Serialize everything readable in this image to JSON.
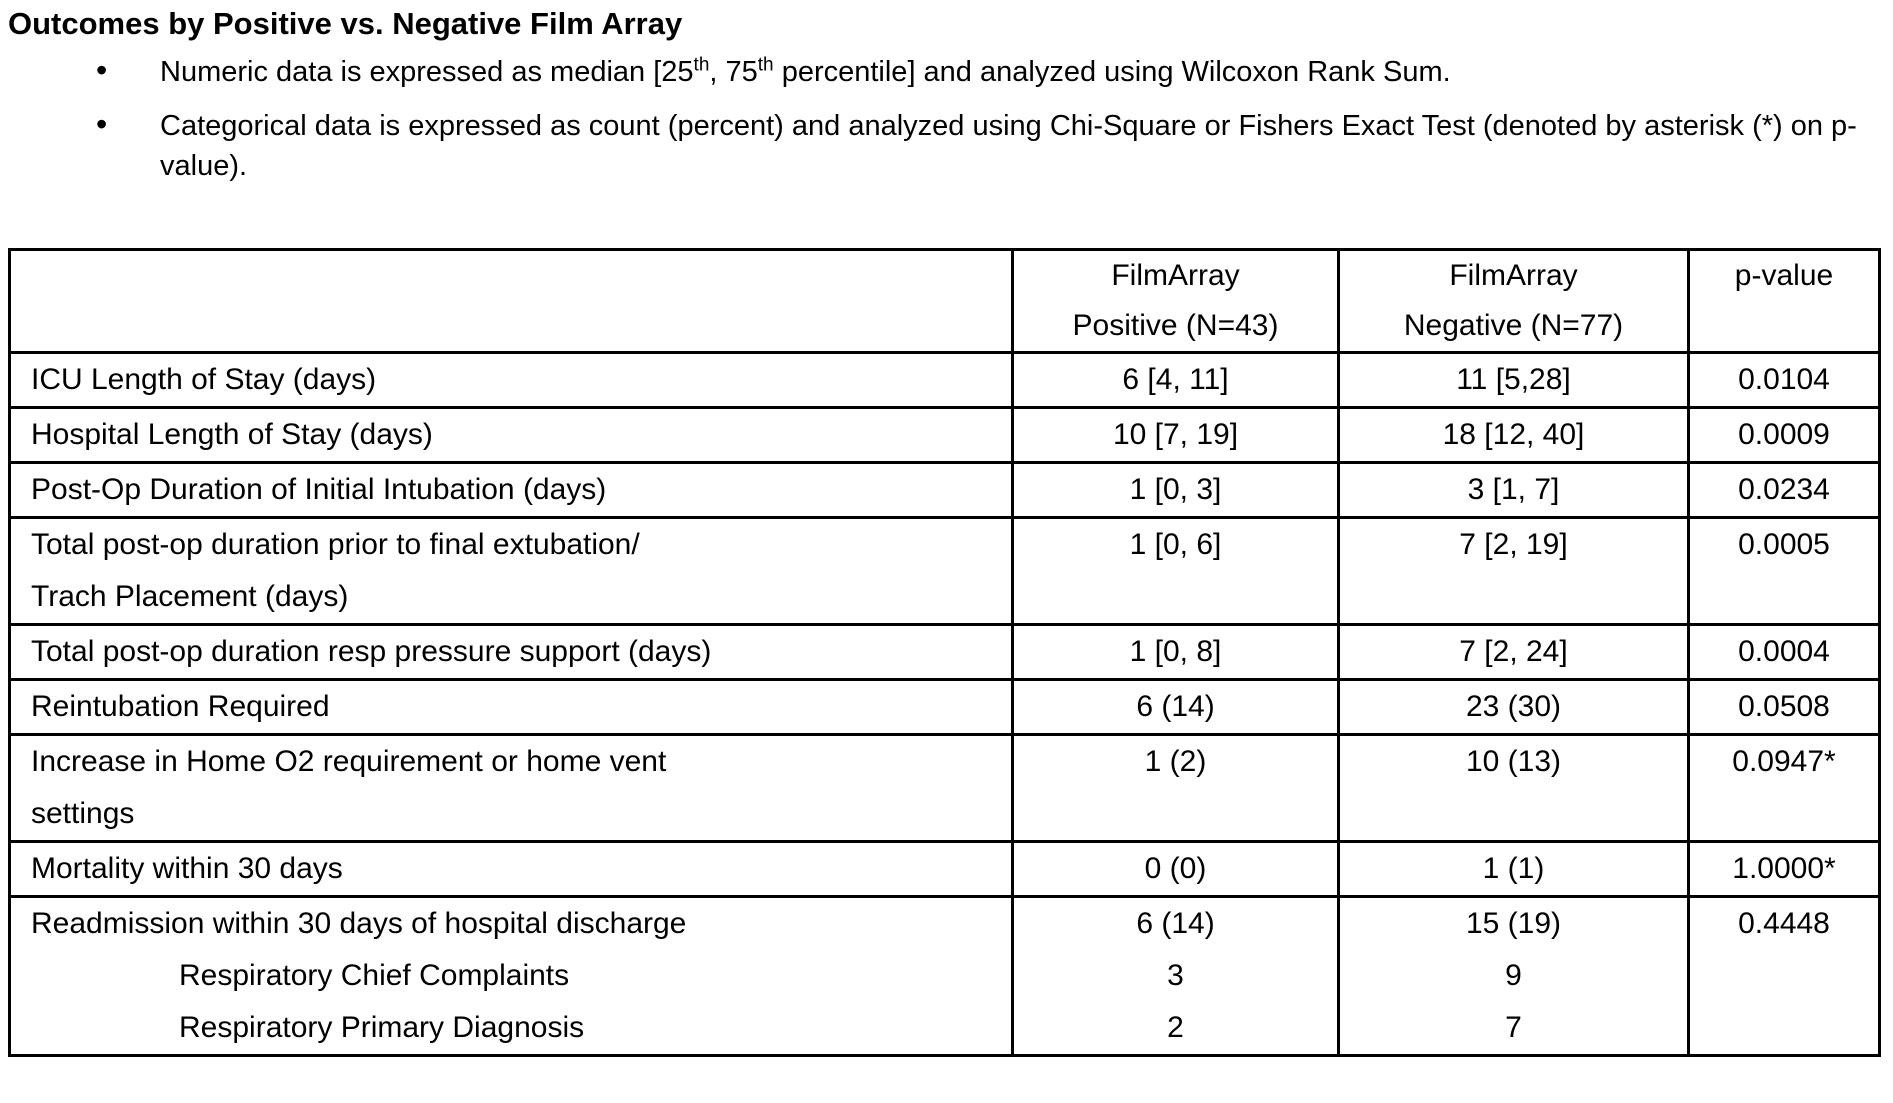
{
  "title": "Outcomes by Positive vs. Negative Film Array",
  "bullets": [
    {
      "segments": [
        {
          "text": "Numeric data is expressed as median [25"
        },
        {
          "text": "th",
          "sup": true
        },
        {
          "text": ", 75"
        },
        {
          "text": "th",
          "sup": true
        },
        {
          "text": " percentile] and analyzed using Wilcoxon Rank Sum."
        }
      ]
    },
    {
      "segments": [
        {
          "text": "Categorical data is expressed as count (percent) and analyzed using Chi-Square or Fishers Exact Test (denoted by asterisk (*) on p-value)."
        }
      ]
    }
  ],
  "table": {
    "header": {
      "empty": "",
      "positive_lines": [
        "FilmArray",
        "Positive (N=43)"
      ],
      "negative_lines": [
        "FilmArray",
        "Negative (N=77)"
      ],
      "p_label": "p-value"
    },
    "rows": [
      {
        "label_lines": [
          "ICU Length of Stay (days)"
        ],
        "positive": "6 [4, 11]",
        "negative": "11 [5,28]",
        "p": "0.0104"
      },
      {
        "label_lines": [
          "Hospital Length of Stay (days)"
        ],
        "positive": "10 [7, 19]",
        "negative": "18 [12, 40]",
        "p": "0.0009"
      },
      {
        "label_lines": [
          "Post-Op Duration of Initial Intubation (days)"
        ],
        "positive": "1 [0, 3]",
        "negative": "3 [1, 7]",
        "p": "0.0234"
      },
      {
        "label_lines": [
          "Total post-op duration prior to final extubation/",
          "Trach Placement (days)"
        ],
        "positive": "1 [0, 6]",
        "negative": "7 [2, 19]",
        "p": "0.0005"
      },
      {
        "label_lines": [
          "Total post-op duration resp pressure support (days)"
        ],
        "positive": "1 [0, 8]",
        "negative": "7 [2, 24]",
        "p": "0.0004"
      },
      {
        "label_lines": [
          "Reintubation Required"
        ],
        "positive": "6 (14)",
        "negative": "23 (30)",
        "p": "0.0508"
      },
      {
        "label_lines": [
          "Increase in Home O2 requirement or home vent",
          "settings"
        ],
        "positive": "1 (2)",
        "negative": "10 (13)",
        "p": "0.0947*"
      },
      {
        "label_lines": [
          "Mortality within 30 days"
        ],
        "positive": "0 (0)",
        "negative": "1 (1)",
        "p": "1.0000*"
      },
      {
        "label_lines": [
          "Readmission within 30 days of hospital discharge"
        ],
        "positive": "6 (14)",
        "negative": "15 (19)",
        "p": "0.4448",
        "sub_rows": [
          {
            "label": "Respiratory Chief Complaints",
            "positive": "3",
            "negative": "9"
          },
          {
            "label": "Respiratory Primary Diagnosis",
            "positive": "2",
            "negative": "7"
          }
        ]
      }
    ]
  }
}
